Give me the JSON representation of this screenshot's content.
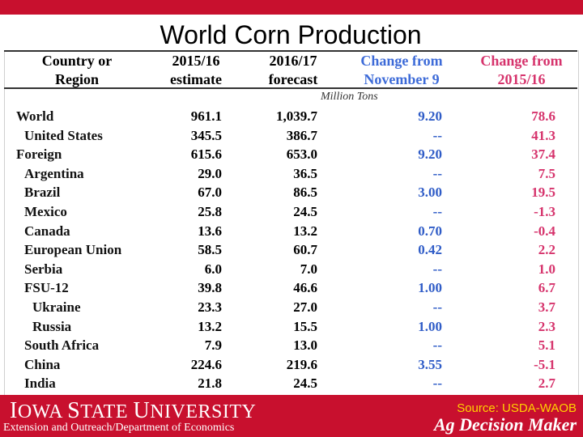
{
  "title": "World Corn Production",
  "headers": {
    "country": "Country or\nRegion",
    "col1": "2015/16\nestimate",
    "col2": "2016/17\nforecast",
    "col3": "Change from\nNovember 9",
    "col4": "Change from\n2015/16"
  },
  "units": "Million Tons",
  "rows": [
    {
      "name": "World",
      "indent": 0,
      "v1": "961.1",
      "v2": "1,039.7",
      "v3": "9.20",
      "v4": "78.6"
    },
    {
      "name": "United States",
      "indent": 1,
      "v1": "345.5",
      "v2": "386.7",
      "v3": "--",
      "v4": "41.3"
    },
    {
      "name": "Foreign",
      "indent": 0,
      "v1": "615.6",
      "v2": "653.0",
      "v3": "9.20",
      "v4": "37.4"
    },
    {
      "name": "Argentina",
      "indent": 1,
      "v1": "29.0",
      "v2": "36.5",
      "v3": "--",
      "v4": "7.5"
    },
    {
      "name": "Brazil",
      "indent": 1,
      "v1": "67.0",
      "v2": "86.5",
      "v3": "3.00",
      "v4": "19.5"
    },
    {
      "name": "Mexico",
      "indent": 1,
      "v1": "25.8",
      "v2": "24.5",
      "v3": "--",
      "v4": "-1.3"
    },
    {
      "name": "Canada",
      "indent": 1,
      "v1": "13.6",
      "v2": "13.2",
      "v3": "0.70",
      "v4": "-0.4"
    },
    {
      "name": "European Union",
      "indent": 1,
      "v1": "58.5",
      "v2": "60.7",
      "v3": "0.42",
      "v4": "2.2"
    },
    {
      "name": "Serbia",
      "indent": 1,
      "v1": "6.0",
      "v2": "7.0",
      "v3": "--",
      "v4": "1.0"
    },
    {
      "name": "FSU-12",
      "indent": 1,
      "v1": "39.8",
      "v2": "46.6",
      "v3": "1.00",
      "v4": "6.7"
    },
    {
      "name": "Ukraine",
      "indent": 2,
      "v1": "23.3",
      "v2": "27.0",
      "v3": "--",
      "v4": "3.7"
    },
    {
      "name": "Russia",
      "indent": 2,
      "v1": "13.2",
      "v2": "15.5",
      "v3": "1.00",
      "v4": "2.3"
    },
    {
      "name": "South Africa",
      "indent": 1,
      "v1": "7.9",
      "v2": "13.0",
      "v3": "--",
      "v4": "5.1"
    },
    {
      "name": "China",
      "indent": 1,
      "v1": "224.6",
      "v2": "219.6",
      "v3": "3.55",
      "v4": "-5.1"
    },
    {
      "name": "India",
      "indent": 1,
      "v1": "21.8",
      "v2": "24.5",
      "v3": "--",
      "v4": "2.7"
    }
  ],
  "footer": {
    "university": "Iowa State University",
    "department": "Extension and Outreach/Department of Economics",
    "source": "Source: USDA-WAOB",
    "program": "Ag Decision Maker"
  },
  "colors": {
    "brand": "#c8102e",
    "blue": "#2f5cc7",
    "red": "#d6336c",
    "gold": "#ffd200"
  }
}
